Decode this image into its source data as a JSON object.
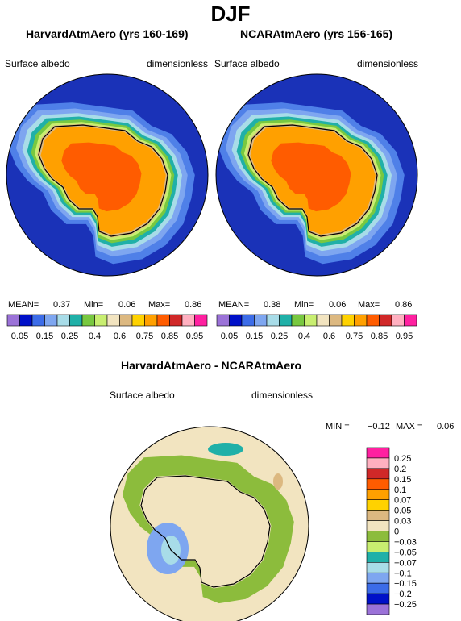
{
  "title": "DJF",
  "panels": [
    {
      "title": "HarvardAtmAero (yrs 160-169)",
      "left_label": "Surface albedo",
      "right_label": "dimensionless",
      "stats": {
        "mean_label": "MEAN=",
        "mean": "0.37",
        "min_label": "Min=",
        "min": "0.06",
        "max_label": "Max=",
        "max": "0.86"
      }
    },
    {
      "title": "NCARAtmAero (yrs 156-165)",
      "left_label": "Surface albedo",
      "right_label": "dimensionless",
      "stats": {
        "mean_label": "MEAN=",
        "mean": "0.38",
        "min_label": "Min=",
        "min": "0.06",
        "max_label": "Max=",
        "max": "0.86"
      }
    }
  ],
  "colorbar": {
    "colors": [
      "#9b72d8",
      "#0010c8",
      "#3c6ce8",
      "#7ea6f0",
      "#a8dce8",
      "#20b0a8",
      "#78c840",
      "#c8ee70",
      "#f2e4c0",
      "#dcb880",
      "#ffd200",
      "#ffa000",
      "#ff5c00",
      "#d02828",
      "#ffb0c0",
      "#ff20a0"
    ],
    "tick_labels": [
      "0.05",
      "0.15",
      "0.25",
      "0.4",
      "0.6",
      "0.75",
      "0.85",
      "0.95"
    ]
  },
  "difference": {
    "title": "HarvardAtmAero - NCARAtmAero",
    "left_label": "Surface albedo",
    "right_label": "dimensionless",
    "stats": {
      "min_label": "MIN =",
      "min": "−0.12",
      "max_label": "MAX =",
      "max": "0.06"
    },
    "colorbar": {
      "colors": [
        "#ff20a0",
        "#ffb0c0",
        "#d02828",
        "#ff5c00",
        "#ffa000",
        "#ffd200",
        "#dcb880",
        "#f2e4c0",
        "#8cbc3c",
        "#c8ee70",
        "#20b0a8",
        "#a8dce8",
        "#7ea6f0",
        "#3c6ce8",
        "#0010c8",
        "#9b72d8"
      ],
      "tick_labels": [
        "0.25",
        "0.2",
        "0.15",
        "0.1",
        "0.07",
        "0.05",
        "0.03",
        "0",
        "−0.03",
        "−0.05",
        "−0.07",
        "−0.1",
        "−0.15",
        "−0.2",
        "−0.25"
      ]
    }
  },
  "chart_data": [
    {
      "type": "heatmap",
      "title": "HarvardAtmAero (yrs 160-169)",
      "variable": "Surface albedo",
      "units": "dimensionless",
      "projection": "south polar stereographic",
      "season": "DJF",
      "mean": 0.37,
      "min": 0.06,
      "max": 0.86,
      "levels": [
        0.05,
        0.1,
        0.15,
        0.2,
        0.25,
        0.3,
        0.4,
        0.5,
        0.6,
        0.7,
        0.75,
        0.8,
        0.85,
        0.9,
        0.95
      ]
    },
    {
      "type": "heatmap",
      "title": "NCARAtmAero (yrs 156-165)",
      "variable": "Surface albedo",
      "units": "dimensionless",
      "projection": "south polar stereographic",
      "season": "DJF",
      "mean": 0.38,
      "min": 0.06,
      "max": 0.86,
      "levels": [
        0.05,
        0.1,
        0.15,
        0.2,
        0.25,
        0.3,
        0.4,
        0.5,
        0.6,
        0.7,
        0.75,
        0.8,
        0.85,
        0.9,
        0.95
      ]
    },
    {
      "type": "heatmap",
      "title": "HarvardAtmAero - NCARAtmAero",
      "variable": "Surface albedo",
      "units": "dimensionless",
      "projection": "south polar stereographic",
      "season": "DJF",
      "min": -0.12,
      "max": 0.06,
      "levels": [
        0.25,
        0.2,
        0.15,
        0.1,
        0.07,
        0.05,
        0.03,
        0,
        -0.03,
        -0.05,
        -0.07,
        -0.1,
        -0.15,
        -0.2,
        -0.25
      ]
    }
  ]
}
